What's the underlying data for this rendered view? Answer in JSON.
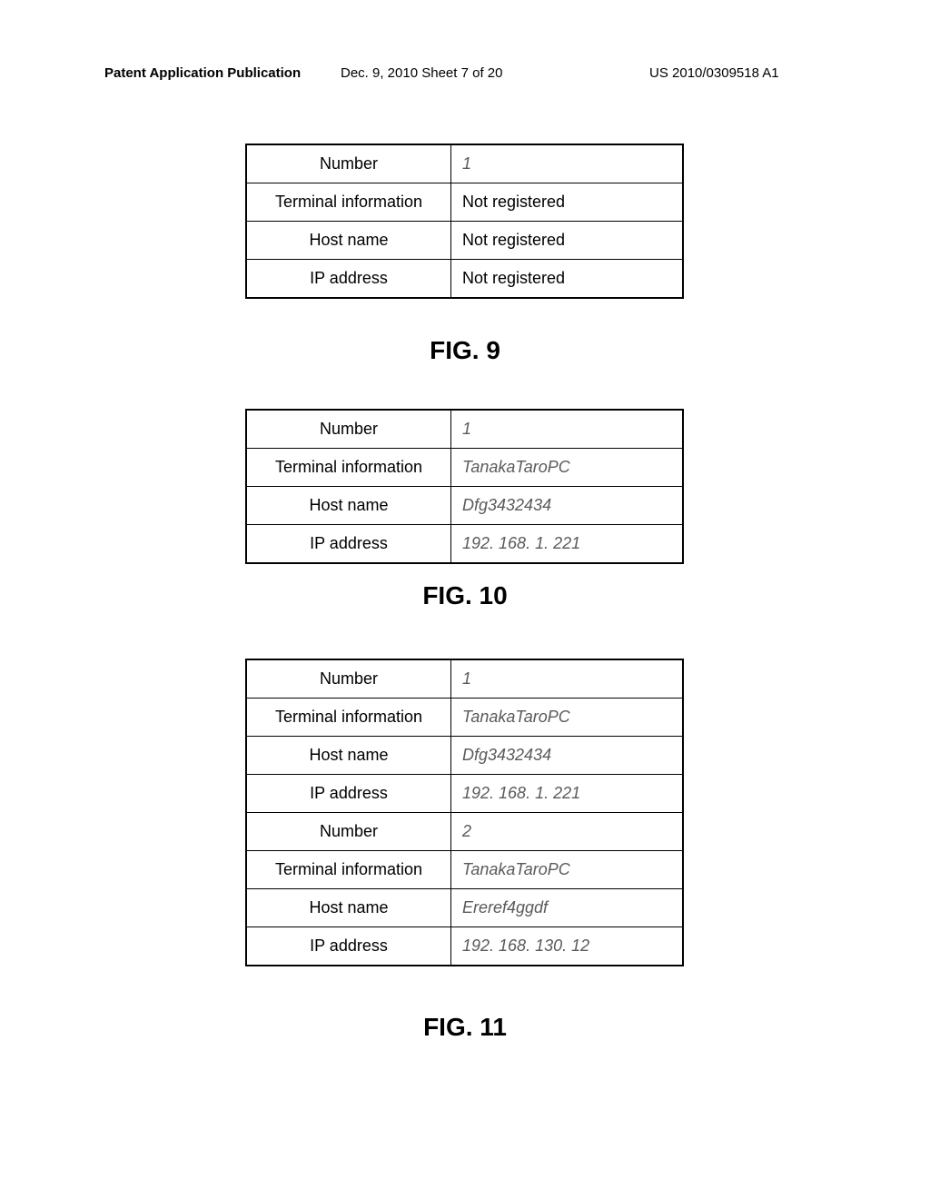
{
  "header": {
    "left": "Patent Application Publication",
    "center": "Dec. 9, 2010   Sheet 7 of 20",
    "right": "US 2010/0309518 A1"
  },
  "fig9": {
    "label": "FIG. 9",
    "rows": [
      {
        "label": "Number",
        "value": "1",
        "stylized": true
      },
      {
        "label": "Terminal information",
        "value": "Not registered",
        "stylized": false
      },
      {
        "label": "Host name",
        "value": "Not registered",
        "stylized": false
      },
      {
        "label": "IP address",
        "value": "Not registered",
        "stylized": false
      }
    ]
  },
  "fig10": {
    "label": "FIG. 10",
    "rows": [
      {
        "label": "Number",
        "value": "1",
        "stylized": true
      },
      {
        "label": "Terminal information",
        "value": "TanakaTaroPC",
        "stylized": true
      },
      {
        "label": "Host name",
        "value": "Dfg3432434",
        "stylized": true
      },
      {
        "label": "IP address",
        "value": "192. 168. 1. 221",
        "stylized": true
      }
    ]
  },
  "fig11": {
    "label": "FIG. 11",
    "rows": [
      {
        "label": "Number",
        "value": "1",
        "stylized": true
      },
      {
        "label": "Terminal information",
        "value": "TanakaTaroPC",
        "stylized": true
      },
      {
        "label": "Host name",
        "value": "Dfg3432434",
        "stylized": true
      },
      {
        "label": "IP address",
        "value": "192. 168. 1. 221",
        "stylized": true
      },
      {
        "label": "Number",
        "value": "2",
        "stylized": true
      },
      {
        "label": "Terminal information",
        "value": "TanakaTaroPC",
        "stylized": true
      },
      {
        "label": "Host name",
        "value": "Ereref4ggdf",
        "stylized": true
      },
      {
        "label": "IP address",
        "value": "192. 168. 130. 12",
        "stylized": true
      }
    ]
  }
}
